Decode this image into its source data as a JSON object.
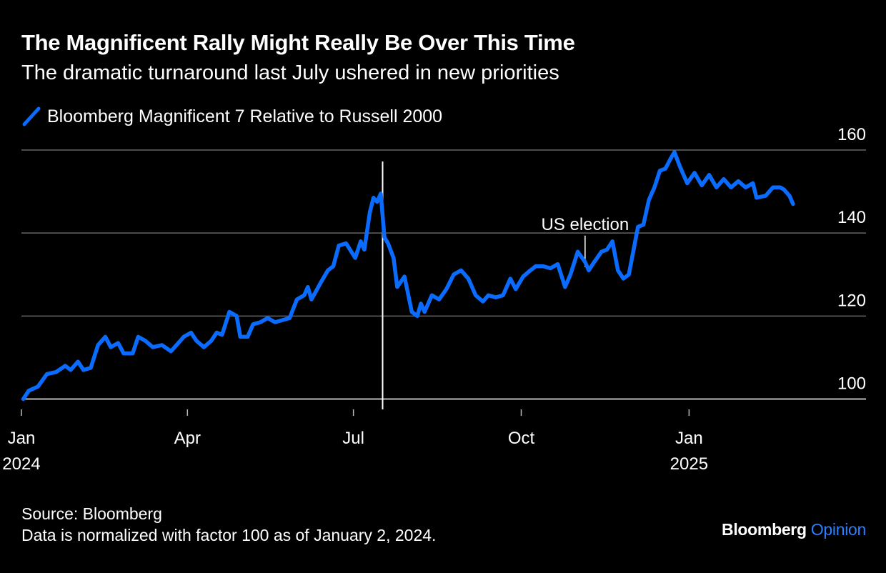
{
  "header": {
    "title": "The Magnificent Rally Might Really Be Over This Time",
    "subtitle": "The dramatic turnaround last July ushered in new priorities"
  },
  "legend": {
    "series_label": "Bloomberg Magnificent 7 Relative to Russell 2000"
  },
  "footer": {
    "source": "Source: Bloomberg",
    "note": "Data is normalized with factor 100 as of January 2, 2024.",
    "brand_name": "Bloomberg",
    "brand_section": "Opinion"
  },
  "colors": {
    "line": "#0a6cff",
    "grid": "#666666",
    "text": "#ffffff",
    "background": "#000000"
  },
  "chart_data": {
    "type": "line",
    "title": "The Magnificent Rally Might Really Be Over This Time",
    "series": [
      {
        "name": "Bloomberg Magnificent 7 Relative to Russell 2000",
        "points": [
          [
            "2024-01-02",
            100
          ],
          [
            "2024-01-05",
            102
          ],
          [
            "2024-01-10",
            103
          ],
          [
            "2024-01-15",
            106
          ],
          [
            "2024-01-20",
            106.5
          ],
          [
            "2024-01-25",
            108
          ],
          [
            "2024-01-28",
            107
          ],
          [
            "2024-02-01",
            109
          ],
          [
            "2024-02-04",
            107
          ],
          [
            "2024-02-08",
            107.5
          ],
          [
            "2024-02-12",
            113
          ],
          [
            "2024-02-16",
            115
          ],
          [
            "2024-02-19",
            112.5
          ],
          [
            "2024-02-23",
            113.5
          ],
          [
            "2024-02-26",
            111
          ],
          [
            "2024-03-02",
            111
          ],
          [
            "2024-03-05",
            115
          ],
          [
            "2024-03-09",
            114
          ],
          [
            "2024-03-13",
            112.5
          ],
          [
            "2024-03-18",
            113
          ],
          [
            "2024-03-23",
            111.5
          ],
          [
            "2024-03-27",
            113.5
          ],
          [
            "2024-03-30",
            115
          ],
          [
            "2024-04-03",
            116
          ],
          [
            "2024-04-06",
            114
          ],
          [
            "2024-04-10",
            112.5
          ],
          [
            "2024-04-14",
            114
          ],
          [
            "2024-04-17",
            116
          ],
          [
            "2024-04-20",
            115.5
          ],
          [
            "2024-04-24",
            121
          ],
          [
            "2024-04-28",
            120
          ],
          [
            "2024-04-30",
            115
          ],
          [
            "2024-05-04",
            115
          ],
          [
            "2024-05-07",
            118
          ],
          [
            "2024-05-11",
            118.5
          ],
          [
            "2024-05-15",
            119.5
          ],
          [
            "2024-05-19",
            118.5
          ],
          [
            "2024-05-23",
            119
          ],
          [
            "2024-05-27",
            119.5
          ],
          [
            "2024-05-31",
            124
          ],
          [
            "2024-06-04",
            125
          ],
          [
            "2024-06-06",
            127
          ],
          [
            "2024-06-08",
            124
          ],
          [
            "2024-06-13",
            128
          ],
          [
            "2024-06-17",
            131
          ],
          [
            "2024-06-20",
            132
          ],
          [
            "2024-06-23",
            137
          ],
          [
            "2024-06-27",
            137.5
          ],
          [
            "2024-07-02",
            134
          ],
          [
            "2024-07-05",
            138
          ],
          [
            "2024-07-07",
            136
          ],
          [
            "2024-07-10",
            145
          ],
          [
            "2024-07-12",
            148.5
          ],
          [
            "2024-07-14",
            147.5
          ],
          [
            "2024-07-16",
            149.5
          ],
          [
            "2024-07-18",
            139
          ],
          [
            "2024-07-20",
            137.5
          ],
          [
            "2024-07-23",
            134
          ],
          [
            "2024-07-25",
            127
          ],
          [
            "2024-07-29",
            129.5
          ],
          [
            "2024-08-02",
            121
          ],
          [
            "2024-08-05",
            120
          ],
          [
            "2024-08-07",
            123
          ],
          [
            "2024-08-09",
            121
          ],
          [
            "2024-08-13",
            125
          ],
          [
            "2024-08-17",
            124
          ],
          [
            "2024-08-21",
            126.5
          ],
          [
            "2024-08-25",
            130
          ],
          [
            "2024-08-29",
            131
          ],
          [
            "2024-09-02",
            129
          ],
          [
            "2024-09-06",
            125
          ],
          [
            "2024-09-10",
            123.5
          ],
          [
            "2024-09-13",
            125
          ],
          [
            "2024-09-17",
            124.5
          ],
          [
            "2024-09-21",
            125
          ],
          [
            "2024-09-25",
            129
          ],
          [
            "2024-09-28",
            126.5
          ],
          [
            "2024-10-02",
            129.5
          ],
          [
            "2024-10-06",
            131
          ],
          [
            "2024-10-09",
            132
          ],
          [
            "2024-10-13",
            132
          ],
          [
            "2024-10-17",
            131.5
          ],
          [
            "2024-10-21",
            132.5
          ],
          [
            "2024-10-25",
            127
          ],
          [
            "2024-10-28",
            130
          ],
          [
            "2024-11-01",
            135.5
          ],
          [
            "2024-11-05",
            133
          ],
          [
            "2024-11-07",
            131
          ],
          [
            "2024-11-10",
            133
          ],
          [
            "2024-11-14",
            135.5
          ],
          [
            "2024-11-17",
            136
          ],
          [
            "2024-11-20",
            138
          ],
          [
            "2024-11-23",
            131
          ],
          [
            "2024-11-26",
            129
          ],
          [
            "2024-11-29",
            130
          ],
          [
            "2024-12-04",
            141.5
          ],
          [
            "2024-12-07",
            142
          ],
          [
            "2024-12-10",
            148
          ],
          [
            "2024-12-13",
            151
          ],
          [
            "2024-12-16",
            155
          ],
          [
            "2024-12-19",
            155.5
          ],
          [
            "2024-12-22",
            158
          ],
          [
            "2024-12-24",
            159.5
          ],
          [
            "2024-12-27",
            156
          ],
          [
            "2024-12-31",
            152
          ],
          [
            "2025-01-04",
            154.5
          ],
          [
            "2025-01-08",
            151.5
          ],
          [
            "2025-01-12",
            154
          ],
          [
            "2025-01-16",
            151
          ],
          [
            "2025-01-20",
            153
          ],
          [
            "2025-01-24",
            151
          ],
          [
            "2025-01-28",
            152.5
          ],
          [
            "2025-02-01",
            151
          ],
          [
            "2025-02-05",
            152
          ],
          [
            "2025-02-07",
            148.5
          ],
          [
            "2025-02-12",
            149
          ],
          [
            "2025-02-16",
            151
          ],
          [
            "2025-02-20",
            151
          ],
          [
            "2025-02-22",
            150.5
          ],
          [
            "2025-02-25",
            149
          ],
          [
            "2025-02-27",
            147
          ]
        ]
      }
    ],
    "x_start": "2024-01-01",
    "x_end": "2025-04-08",
    "xlabel": "",
    "ylabel": "",
    "ylim": [
      97.5,
      160
    ],
    "grid": true,
    "x_ticks": [
      {
        "date": "2024-01-01",
        "label": "Jan",
        "sublabel": "2024"
      },
      {
        "date": "2024-04-01",
        "label": "Apr",
        "sublabel": ""
      },
      {
        "date": "2024-07-01",
        "label": "Jul",
        "sublabel": ""
      },
      {
        "date": "2024-10-01",
        "label": "Oct",
        "sublabel": ""
      },
      {
        "date": "2025-01-01",
        "label": "Jan",
        "sublabel": "2025"
      }
    ],
    "y_ticks": [
      {
        "value": 100,
        "label": "100"
      },
      {
        "value": 120,
        "label": "120"
      },
      {
        "value": 140,
        "label": "140"
      },
      {
        "value": 160,
        "label": "160"
      }
    ],
    "annotations": [
      {
        "type": "vline",
        "date": "2024-07-17"
      },
      {
        "type": "label",
        "date": "2024-11-05",
        "value": 138,
        "text": "US election"
      }
    ]
  }
}
